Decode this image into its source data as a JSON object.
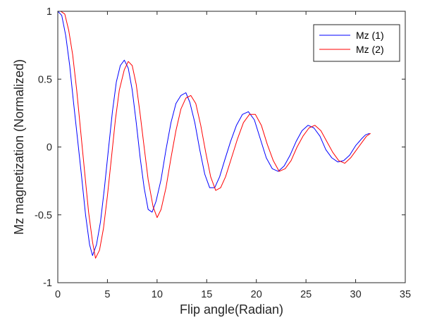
{
  "chart_data": {
    "type": "line",
    "xlabel": "Flip angle(Radian)",
    "ylabel": "Mz magnetization (Normalized)",
    "xlim": [
      0,
      35
    ],
    "ylim": [
      -1,
      1
    ],
    "xticks": [
      0,
      5,
      10,
      15,
      20,
      25,
      30,
      35
    ],
    "yticks": [
      -1,
      -0.5,
      0,
      0.5,
      1
    ],
    "xtick_labels": [
      "0",
      "5",
      "10",
      "15",
      "20",
      "25",
      "30",
      "35"
    ],
    "ytick_labels": [
      "-1",
      "-0.5",
      "0",
      "0.5",
      "1"
    ],
    "grid": false,
    "legend_position": "top-right",
    "series": [
      {
        "name": "Mz (1)",
        "color": "#0000ff",
        "points": [
          [
            0.0,
            1.0
          ],
          [
            0.4,
            0.97
          ],
          [
            0.8,
            0.82
          ],
          [
            1.2,
            0.6
          ],
          [
            1.6,
            0.32
          ],
          [
            2.0,
            0.05
          ],
          [
            2.4,
            -0.22
          ],
          [
            2.8,
            -0.5
          ],
          [
            3.2,
            -0.72
          ],
          [
            3.5,
            -0.8
          ],
          [
            3.9,
            -0.72
          ],
          [
            4.3,
            -0.55
          ],
          [
            4.7,
            -0.3
          ],
          [
            5.1,
            -0.02
          ],
          [
            5.5,
            0.26
          ],
          [
            5.9,
            0.48
          ],
          [
            6.3,
            0.6
          ],
          [
            6.7,
            0.64
          ],
          [
            7.1,
            0.58
          ],
          [
            7.5,
            0.42
          ],
          [
            7.9,
            0.18
          ],
          [
            8.3,
            -0.08
          ],
          [
            8.7,
            -0.3
          ],
          [
            9.1,
            -0.46
          ],
          [
            9.5,
            -0.48
          ],
          [
            9.9,
            -0.4
          ],
          [
            10.4,
            -0.24
          ],
          [
            10.9,
            -0.02
          ],
          [
            11.4,
            0.18
          ],
          [
            11.9,
            0.32
          ],
          [
            12.4,
            0.38
          ],
          [
            12.9,
            0.4
          ],
          [
            13.3,
            0.33
          ],
          [
            13.8,
            0.18
          ],
          [
            14.3,
            -0.02
          ],
          [
            14.8,
            -0.2
          ],
          [
            15.3,
            -0.3
          ],
          [
            15.8,
            -0.3
          ],
          [
            16.3,
            -0.22
          ],
          [
            16.8,
            -0.1
          ],
          [
            17.4,
            0.04
          ],
          [
            18.0,
            0.16
          ],
          [
            18.6,
            0.24
          ],
          [
            19.2,
            0.26
          ],
          [
            19.8,
            0.2
          ],
          [
            20.4,
            0.06
          ],
          [
            21.0,
            -0.08
          ],
          [
            21.6,
            -0.16
          ],
          [
            22.2,
            -0.18
          ],
          [
            22.8,
            -0.14
          ],
          [
            23.4,
            -0.06
          ],
          [
            24.0,
            0.04
          ],
          [
            24.6,
            0.12
          ],
          [
            25.2,
            0.16
          ],
          [
            25.8,
            0.14
          ],
          [
            26.4,
            0.08
          ],
          [
            27.0,
            -0.02
          ],
          [
            27.6,
            -0.08
          ],
          [
            28.2,
            -0.11
          ],
          [
            28.8,
            -0.1
          ],
          [
            29.4,
            -0.06
          ],
          [
            30.0,
            0.01
          ],
          [
            30.6,
            0.06
          ],
          [
            31.0,
            0.09
          ],
          [
            31.4,
            0.1
          ]
        ]
      },
      {
        "name": "Mz (2)",
        "color": "#ff0000",
        "points": [
          [
            0.3,
            1.0
          ],
          [
            0.7,
            0.98
          ],
          [
            1.1,
            0.86
          ],
          [
            1.5,
            0.68
          ],
          [
            1.9,
            0.42
          ],
          [
            2.3,
            0.12
          ],
          [
            2.7,
            -0.18
          ],
          [
            3.1,
            -0.48
          ],
          [
            3.5,
            -0.7
          ],
          [
            3.8,
            -0.82
          ],
          [
            4.2,
            -0.76
          ],
          [
            4.6,
            -0.6
          ],
          [
            5.0,
            -0.36
          ],
          [
            5.4,
            -0.08
          ],
          [
            5.8,
            0.2
          ],
          [
            6.2,
            0.42
          ],
          [
            6.7,
            0.57
          ],
          [
            7.1,
            0.63
          ],
          [
            7.5,
            0.6
          ],
          [
            7.9,
            0.46
          ],
          [
            8.3,
            0.24
          ],
          [
            8.7,
            0.0
          ],
          [
            9.1,
            -0.24
          ],
          [
            9.6,
            -0.44
          ],
          [
            10.0,
            -0.52
          ],
          [
            10.4,
            -0.46
          ],
          [
            10.9,
            -0.3
          ],
          [
            11.4,
            -0.08
          ],
          [
            11.9,
            0.12
          ],
          [
            12.4,
            0.28
          ],
          [
            12.9,
            0.36
          ],
          [
            13.4,
            0.38
          ],
          [
            13.9,
            0.32
          ],
          [
            14.4,
            0.16
          ],
          [
            14.9,
            -0.04
          ],
          [
            15.4,
            -0.22
          ],
          [
            15.9,
            -0.32
          ],
          [
            16.4,
            -0.3
          ],
          [
            16.9,
            -0.22
          ],
          [
            17.5,
            -0.08
          ],
          [
            18.1,
            0.06
          ],
          [
            18.7,
            0.18
          ],
          [
            19.3,
            0.24
          ],
          [
            19.9,
            0.24
          ],
          [
            20.5,
            0.16
          ],
          [
            21.1,
            0.02
          ],
          [
            21.7,
            -0.1
          ],
          [
            22.3,
            -0.18
          ],
          [
            22.9,
            -0.16
          ],
          [
            23.5,
            -0.1
          ],
          [
            24.1,
            0.0
          ],
          [
            24.7,
            0.08
          ],
          [
            25.3,
            0.14
          ],
          [
            25.9,
            0.16
          ],
          [
            26.5,
            0.12
          ],
          [
            27.1,
            0.04
          ],
          [
            27.7,
            -0.04
          ],
          [
            28.3,
            -0.1
          ],
          [
            28.9,
            -0.12
          ],
          [
            29.5,
            -0.08
          ],
          [
            30.1,
            -0.02
          ],
          [
            30.7,
            0.04
          ],
          [
            31.1,
            0.08
          ],
          [
            31.5,
            0.1
          ]
        ]
      }
    ]
  }
}
